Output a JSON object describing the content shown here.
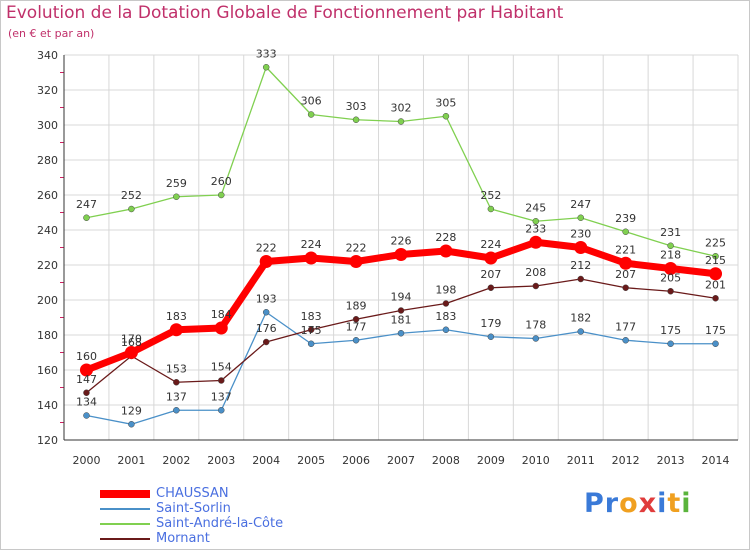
{
  "header": {
    "title": "Evolution de la Dotation Globale de Fonctionnement par Habitant",
    "subtitle": "(en € et par an)"
  },
  "brand": {
    "letters": [
      "P",
      "r",
      "o",
      "x",
      "i",
      "t",
      "i"
    ],
    "colors": [
      "#3a7ad8",
      "#3a7ad8",
      "#f0a020",
      "#e03c3c",
      "#3a7ad8",
      "#f0a020",
      "#5ab43c"
    ]
  },
  "chart_data": {
    "type": "line",
    "title": "Evolution de la Dotation Globale de Fonctionnement par Habitant",
    "subtitle": "(en € et par an)",
    "xlabel": "",
    "ylabel": "",
    "x": [
      "2000",
      "2001",
      "2002",
      "2003",
      "2004",
      "2005",
      "2006",
      "2007",
      "2008",
      "2009",
      "2010",
      "2011",
      "2012",
      "2013",
      "2014"
    ],
    "ylim": [
      120,
      340
    ],
    "yticks": [
      120,
      140,
      160,
      180,
      200,
      220,
      240,
      260,
      280,
      300,
      320,
      340
    ],
    "grid": true,
    "legend_position": "bottom-left",
    "series": [
      {
        "name": "CHAUSSAN",
        "color": "#ff0000",
        "values": [
          160,
          170,
          183,
          184,
          222,
          224,
          222,
          226,
          228,
          224,
          233,
          230,
          221,
          218,
          215
        ]
      },
      {
        "name": "Saint-Sorlin",
        "color": "#4a90c8",
        "values": [
          134,
          129,
          137,
          137,
          193,
          175,
          177,
          181,
          183,
          179,
          178,
          182,
          177,
          175,
          175
        ]
      },
      {
        "name": "Saint-André-la-Côte",
        "color": "#80d050",
        "values": [
          247,
          252,
          259,
          260,
          333,
          306,
          303,
          302,
          305,
          252,
          245,
          247,
          239,
          231,
          225
        ]
      },
      {
        "name": "Mornant",
        "color": "#6a1a1a",
        "values": [
          147,
          168,
          153,
          154,
          176,
          183,
          189,
          194,
          198,
          207,
          208,
          212,
          207,
          205,
          201
        ]
      }
    ]
  }
}
